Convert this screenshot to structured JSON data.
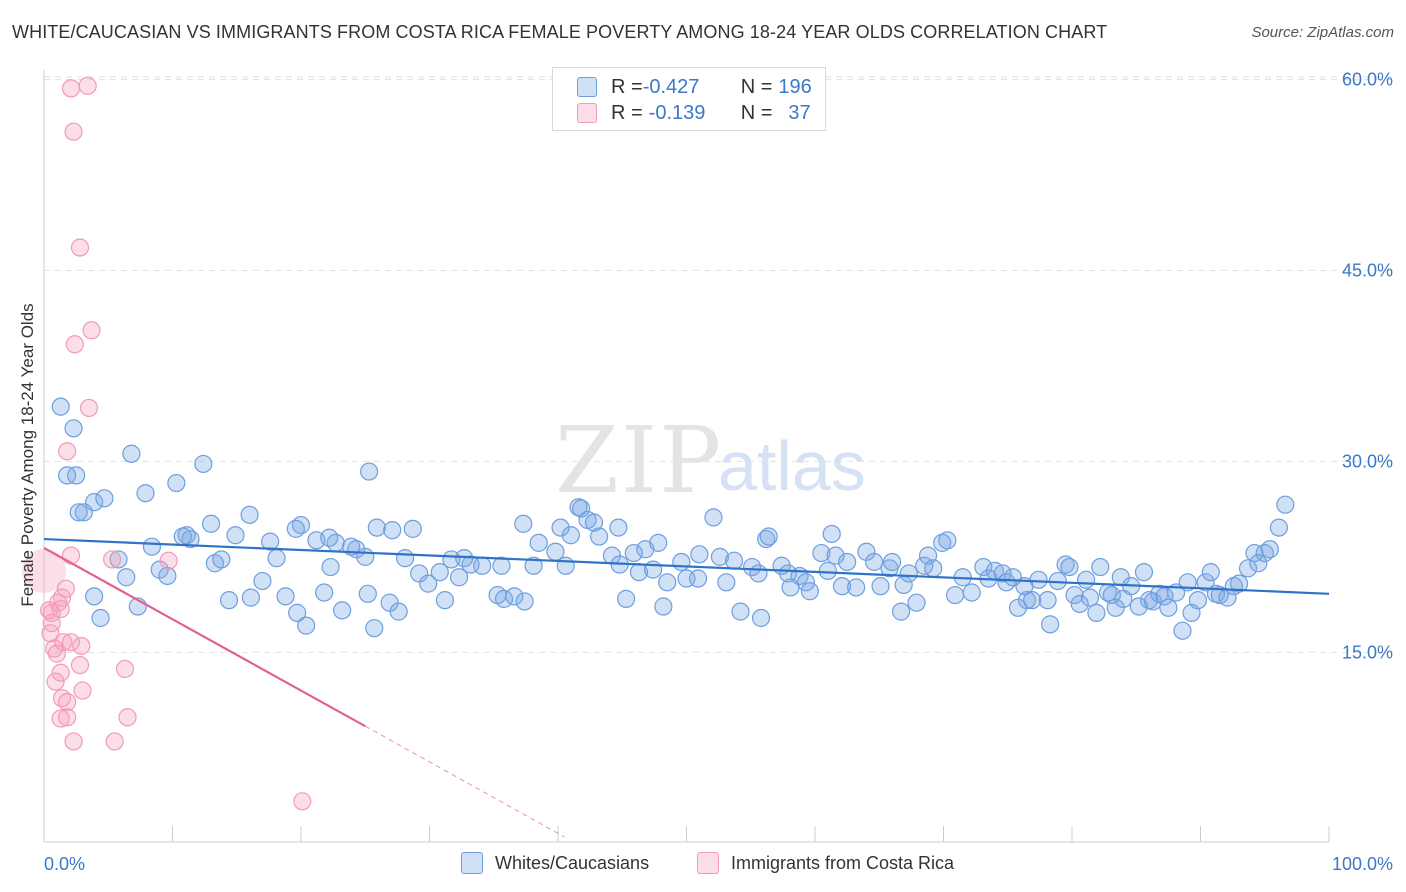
{
  "title": "WHITE/CAUCASIAN VS IMMIGRANTS FROM COSTA RICA FEMALE POVERTY AMONG 18-24 YEAR OLDS CORRELATION CHART",
  "source": "Source: ZipAtlas.com",
  "legend_top": {
    "rows": [
      {
        "r_label": "R = ",
        "r_value": "-0.427",
        "n_label": "N = ",
        "n_value": "196"
      },
      {
        "r_label": "R = ",
        "r_value": "-0.139",
        "n_label": "N = ",
        "n_value": "37"
      }
    ]
  },
  "legend_bottom": {
    "series1": "Whites/Caucasians",
    "series2": "Immigrants from Costa Rica"
  },
  "chart_data": {
    "type": "scatter",
    "title": "WHITE/CAUCASIAN VS IMMIGRANTS FROM COSTA RICA FEMALE POVERTY AMONG 18-24 YEAR OLDS CORRELATION CHART",
    "xlabel": "",
    "ylabel": "Female Poverty Among 18-24 Year Olds",
    "xlim": [
      0,
      100
    ],
    "ylim": [
      0,
      62
    ],
    "x_tick_labels": [
      "0.0%",
      "100.0%"
    ],
    "y_ticks": [
      15,
      30,
      45,
      60
    ],
    "y_tick_labels": [
      "15.0%",
      "30.0%",
      "45.0%",
      "60.0%"
    ],
    "grid": true,
    "watermark": {
      "zip": "ZIP",
      "atlas": "atlas"
    },
    "colors": {
      "white_fill": "rgba(120,165,225,0.35)",
      "white_stroke": "#6f9ee0",
      "white_line": "#2f73c8",
      "cr_fill": "rgba(245,160,190,0.35)",
      "cr_stroke": "#f29ab8",
      "cr_line": "#e2628f",
      "axis_label": "#3a78c8",
      "grid": "#e2e2e2"
    },
    "series": [
      {
        "name": "Whites/Caucasians",
        "trendline": {
          "x": [
            0,
            100
          ],
          "y": [
            23.9,
            19.6
          ]
        },
        "points": [
          [
            1.3,
            34.3
          ],
          [
            2.3,
            32.6
          ],
          [
            2.5,
            28.9
          ],
          [
            1.8,
            28.9
          ],
          [
            3.9,
            26.8
          ],
          [
            4.7,
            27.1
          ],
          [
            6.8,
            30.6
          ],
          [
            7.9,
            27.5
          ],
          [
            10.3,
            28.3
          ],
          [
            12.4,
            29.8
          ],
          [
            3.1,
            26.0
          ],
          [
            2.7,
            26.0
          ],
          [
            13,
            25.1
          ],
          [
            16,
            25.8
          ],
          [
            20,
            25
          ],
          [
            21.2,
            23.8
          ],
          [
            22.7,
            23.6
          ],
          [
            25,
            22.5
          ],
          [
            25.9,
            24.8
          ],
          [
            22.2,
            24
          ],
          [
            14.9,
            24.2
          ],
          [
            8.4,
            23.3
          ],
          [
            9,
            21.5
          ],
          [
            5.8,
            22.3
          ],
          [
            6.4,
            20.9
          ],
          [
            9.6,
            21
          ],
          [
            3.9,
            19.4
          ],
          [
            4.4,
            17.7
          ],
          [
            7.3,
            18.6
          ],
          [
            11.4,
            23.9
          ],
          [
            11.1,
            24.2
          ],
          [
            10.8,
            24.1
          ],
          [
            13.3,
            22
          ],
          [
            13.8,
            22.3
          ],
          [
            14.4,
            19.1
          ],
          [
            16.1,
            19.3
          ],
          [
            17,
            20.6
          ],
          [
            18.1,
            22.4
          ],
          [
            18.8,
            19.4
          ],
          [
            19.7,
            18.1
          ],
          [
            20.4,
            17.1
          ],
          [
            21.8,
            19.7
          ],
          [
            22.3,
            21.7
          ],
          [
            23.2,
            18.3
          ],
          [
            23.9,
            23.3
          ],
          [
            24.3,
            23.1
          ],
          [
            25.2,
            19.6
          ],
          [
            25.7,
            16.9
          ],
          [
            26.9,
            18.9
          ],
          [
            27.6,
            18.2
          ],
          [
            27.1,
            24.6
          ],
          [
            28.7,
            24.7
          ],
          [
            28.1,
            22.4
          ],
          [
            29.2,
            21.2
          ],
          [
            29.9,
            20.4
          ],
          [
            30.8,
            21.3
          ],
          [
            31.2,
            19.1
          ],
          [
            32.3,
            20.9
          ],
          [
            32.7,
            22.4
          ],
          [
            33.2,
            21.9
          ],
          [
            34.1,
            21.8
          ],
          [
            35.3,
            19.5
          ],
          [
            35.8,
            19.2
          ],
          [
            36.6,
            19.4
          ],
          [
            37.4,
            19
          ],
          [
            38.1,
            21.8
          ],
          [
            38.5,
            23.6
          ],
          [
            39.8,
            22.9
          ],
          [
            40.2,
            24.8
          ],
          [
            40.6,
            21.8
          ],
          [
            41,
            24.2
          ],
          [
            41.6,
            26.4
          ],
          [
            42.3,
            25.4
          ],
          [
            43.2,
            24.1
          ],
          [
            42.8,
            25.2
          ],
          [
            44.2,
            22.6
          ],
          [
            44.8,
            21.9
          ],
          [
            45.3,
            19.2
          ],
          [
            45.9,
            22.8
          ],
          [
            46.3,
            21.3
          ],
          [
            46.8,
            23.1
          ],
          [
            47.4,
            21.5
          ],
          [
            47.8,
            23.6
          ],
          [
            48.2,
            18.6
          ],
          [
            48.5,
            20.5
          ],
          [
            49.6,
            22.1
          ],
          [
            50,
            20.8
          ],
          [
            50.9,
            20.8
          ],
          [
            51,
            22.7
          ],
          [
            52.1,
            25.6
          ],
          [
            52.6,
            22.5
          ],
          [
            53.1,
            20.5
          ],
          [
            53.7,
            22.2
          ],
          [
            54.2,
            18.2
          ],
          [
            55.1,
            21.7
          ],
          [
            55.6,
            21.2
          ],
          [
            55.8,
            17.7
          ],
          [
            56.2,
            23.9
          ],
          [
            56.4,
            24.1
          ],
          [
            57.4,
            21.8
          ],
          [
            57.9,
            21.2
          ],
          [
            58.1,
            20.1
          ],
          [
            58.8,
            21
          ],
          [
            59.3,
            20.5
          ],
          [
            59.6,
            19.8
          ],
          [
            60.5,
            22.8
          ],
          [
            61,
            21.4
          ],
          [
            61.3,
            24.3
          ],
          [
            61.6,
            22.6
          ],
          [
            62.1,
            20.2
          ],
          [
            62.5,
            22.1
          ],
          [
            63.2,
            20.1
          ],
          [
            64,
            22.9
          ],
          [
            64.6,
            22.1
          ],
          [
            65.1,
            20.2
          ],
          [
            65.8,
            21.6
          ],
          [
            66,
            22.1
          ],
          [
            66.7,
            18.2
          ],
          [
            66.9,
            20.3
          ],
          [
            67.3,
            21.2
          ],
          [
            67.9,
            18.9
          ],
          [
            68.5,
            21.8
          ],
          [
            68.8,
            22.6
          ],
          [
            69.2,
            21.6
          ],
          [
            69.9,
            23.6
          ],
          [
            70.3,
            23.8
          ],
          [
            70.9,
            19.5
          ],
          [
            71.5,
            20.9
          ],
          [
            72.2,
            19.7
          ],
          [
            73.1,
            21.7
          ],
          [
            73.5,
            20.8
          ],
          [
            74,
            21.4
          ],
          [
            74.6,
            21.2
          ],
          [
            74.9,
            20.5
          ],
          [
            75.4,
            20.9
          ],
          [
            75.8,
            18.5
          ],
          [
            76.3,
            20.2
          ],
          [
            76.5,
            19.1
          ],
          [
            76.9,
            19.1
          ],
          [
            77.4,
            20.7
          ],
          [
            78.1,
            19.1
          ],
          [
            78.3,
            17.2
          ],
          [
            78.9,
            20.6
          ],
          [
            79.5,
            21.9
          ],
          [
            79.8,
            21.7
          ],
          [
            80.2,
            19.5
          ],
          [
            80.6,
            18.8
          ],
          [
            81.1,
            20.7
          ],
          [
            81.4,
            19.3
          ],
          [
            81.9,
            18.1
          ],
          [
            82.2,
            21.7
          ],
          [
            82.8,
            19.7
          ],
          [
            83.1,
            19.5
          ],
          [
            83.4,
            18.5
          ],
          [
            83.8,
            20.9
          ],
          [
            84,
            19.2
          ],
          [
            84.6,
            20.2
          ],
          [
            85.2,
            18.6
          ],
          [
            85.6,
            21.3
          ],
          [
            86,
            19.1
          ],
          [
            86.3,
            19
          ],
          [
            86.8,
            19.6
          ],
          [
            87.2,
            19.4
          ],
          [
            87.5,
            18.5
          ],
          [
            88.1,
            19.7
          ],
          [
            88.6,
            16.7
          ],
          [
            89,
            20.5
          ],
          [
            89.3,
            18.1
          ],
          [
            89.8,
            19.1
          ],
          [
            90.4,
            20.5
          ],
          [
            90.8,
            21.3
          ],
          [
            91.2,
            19.6
          ],
          [
            91.5,
            19.5
          ],
          [
            92.1,
            19.3
          ],
          [
            92.6,
            20.2
          ],
          [
            93,
            20.4
          ],
          [
            93.7,
            21.6
          ],
          [
            94.2,
            22.8
          ],
          [
            94.5,
            22
          ],
          [
            95,
            22.8
          ],
          [
            95.4,
            23.1
          ],
          [
            96.1,
            24.8
          ],
          [
            96.6,
            26.6
          ],
          [
            41.8,
            26.3
          ],
          [
            25.3,
            29.2
          ],
          [
            31.7,
            22.3
          ],
          [
            17.6,
            23.7
          ],
          [
            19.6,
            24.7
          ],
          [
            35.6,
            21.8
          ],
          [
            37.3,
            25.1
          ],
          [
            44.7,
            24.8
          ]
        ]
      },
      {
        "name": "Immigrants from Costa Rica",
        "trendline": {
          "x": [
            0,
            25
          ],
          "y": [
            23.2,
            9.2
          ]
        },
        "trendline_dashed": {
          "x": [
            25,
            40.5
          ],
          "y": [
            9.2,
            0.5
          ]
        },
        "points": [
          [
            2.1,
            59.3
          ],
          [
            3.4,
            59.5
          ],
          [
            2.3,
            55.9
          ],
          [
            2.8,
            46.8
          ],
          [
            3.7,
            40.3
          ],
          [
            2.4,
            39.2
          ],
          [
            3.5,
            34.2
          ],
          [
            1.8,
            30.8
          ],
          [
            5.3,
            22.3
          ],
          [
            2.1,
            22.6
          ],
          [
            0.4,
            18.3
          ],
          [
            0.6,
            18.1
          ],
          [
            1.3,
            18.4
          ],
          [
            0.6,
            17.3
          ],
          [
            1.7,
            20
          ],
          [
            1.4,
            19.3
          ],
          [
            1.1,
            18.9
          ],
          [
            0.5,
            16.5
          ],
          [
            0.8,
            15.3
          ],
          [
            1.5,
            15.8
          ],
          [
            2.1,
            15.8
          ],
          [
            2.9,
            15.5
          ],
          [
            1,
            14.9
          ],
          [
            1.3,
            13.4
          ],
          [
            2.8,
            14
          ],
          [
            6.3,
            13.7
          ],
          [
            0.9,
            12.7
          ],
          [
            1.4,
            11.4
          ],
          [
            1.8,
            11.1
          ],
          [
            3,
            12
          ],
          [
            1.3,
            9.8
          ],
          [
            1.8,
            9.9
          ],
          [
            6.5,
            9.9
          ],
          [
            2.3,
            8
          ],
          [
            5.5,
            8
          ],
          [
            20.1,
            3.3
          ],
          [
            9.7,
            22.2
          ]
        ]
      }
    ]
  }
}
